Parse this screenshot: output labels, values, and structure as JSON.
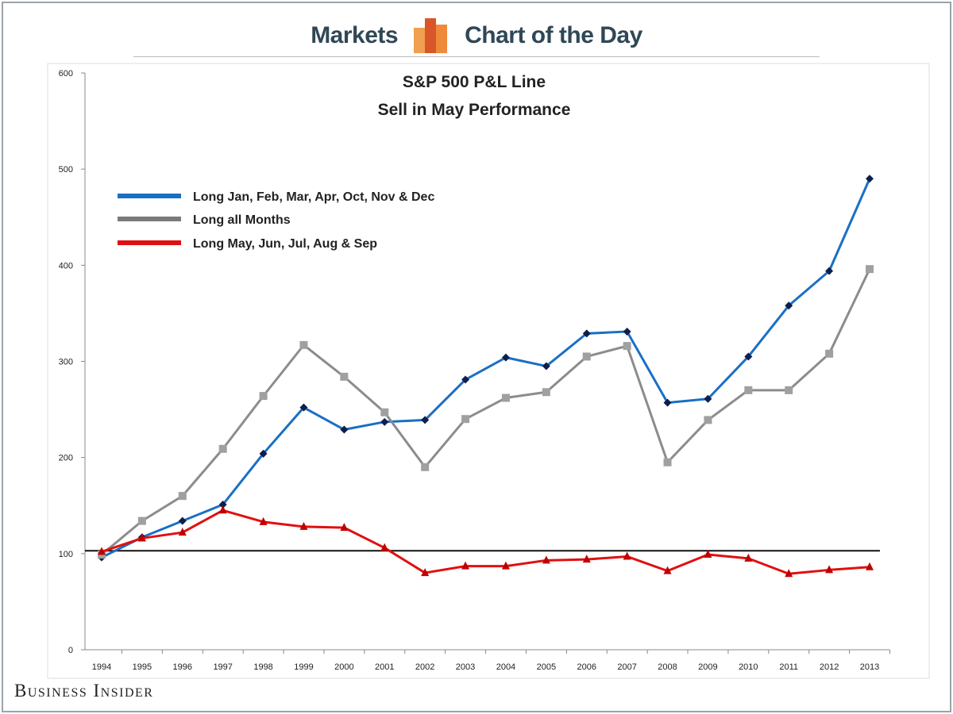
{
  "header": {
    "left": "Markets",
    "right": "Chart of the Day"
  },
  "footer": {
    "brand": "Business Insider"
  },
  "colors": {
    "blue": "#1a6fc4",
    "gray": "#8c8c8c",
    "red": "#e01010",
    "header_text": "#2f4756"
  },
  "chart_data": {
    "type": "line",
    "title": "S&P 500 P&L Line",
    "subtitle": "Sell in May Performance",
    "xlabel": "",
    "ylabel": "",
    "ylim": [
      0,
      600
    ],
    "yticks": [
      0,
      100,
      200,
      300,
      400,
      500,
      600
    ],
    "grid": false,
    "legend_position": "top-left",
    "reference_line": 103,
    "x": [
      "1994",
      "1995",
      "1996",
      "1997",
      "1998",
      "1999",
      "2000",
      "2001",
      "2002",
      "2003",
      "2004",
      "2005",
      "2006",
      "2007",
      "2008",
      "2009",
      "2010",
      "2011",
      "2012",
      "2013"
    ],
    "series": [
      {
        "name": "Long Jan, Feb, Mar, Apr, Oct, Nov & Dec",
        "color": "#1a6fc4",
        "marker": "diamond",
        "values": [
          96,
          117,
          134,
          151,
          204,
          252,
          229,
          237,
          239,
          281,
          304,
          295,
          329,
          331,
          257,
          261,
          305,
          358,
          394,
          490
        ]
      },
      {
        "name": "Long all Months",
        "color": "#8c8c8c",
        "marker": "square",
        "values": [
          99,
          134,
          160,
          209,
          264,
          317,
          284,
          247,
          190,
          240,
          262,
          268,
          305,
          316,
          195,
          239,
          270,
          270,
          308,
          396
        ]
      },
      {
        "name": "Long May, Jun, Jul, Aug & Sep",
        "color": "#e01010",
        "marker": "triangle",
        "values": [
          102,
          116,
          122,
          145,
          133,
          128,
          127,
          106,
          80,
          87,
          87,
          93,
          94,
          97,
          82,
          99,
          95,
          79,
          83,
          86
        ]
      }
    ]
  }
}
